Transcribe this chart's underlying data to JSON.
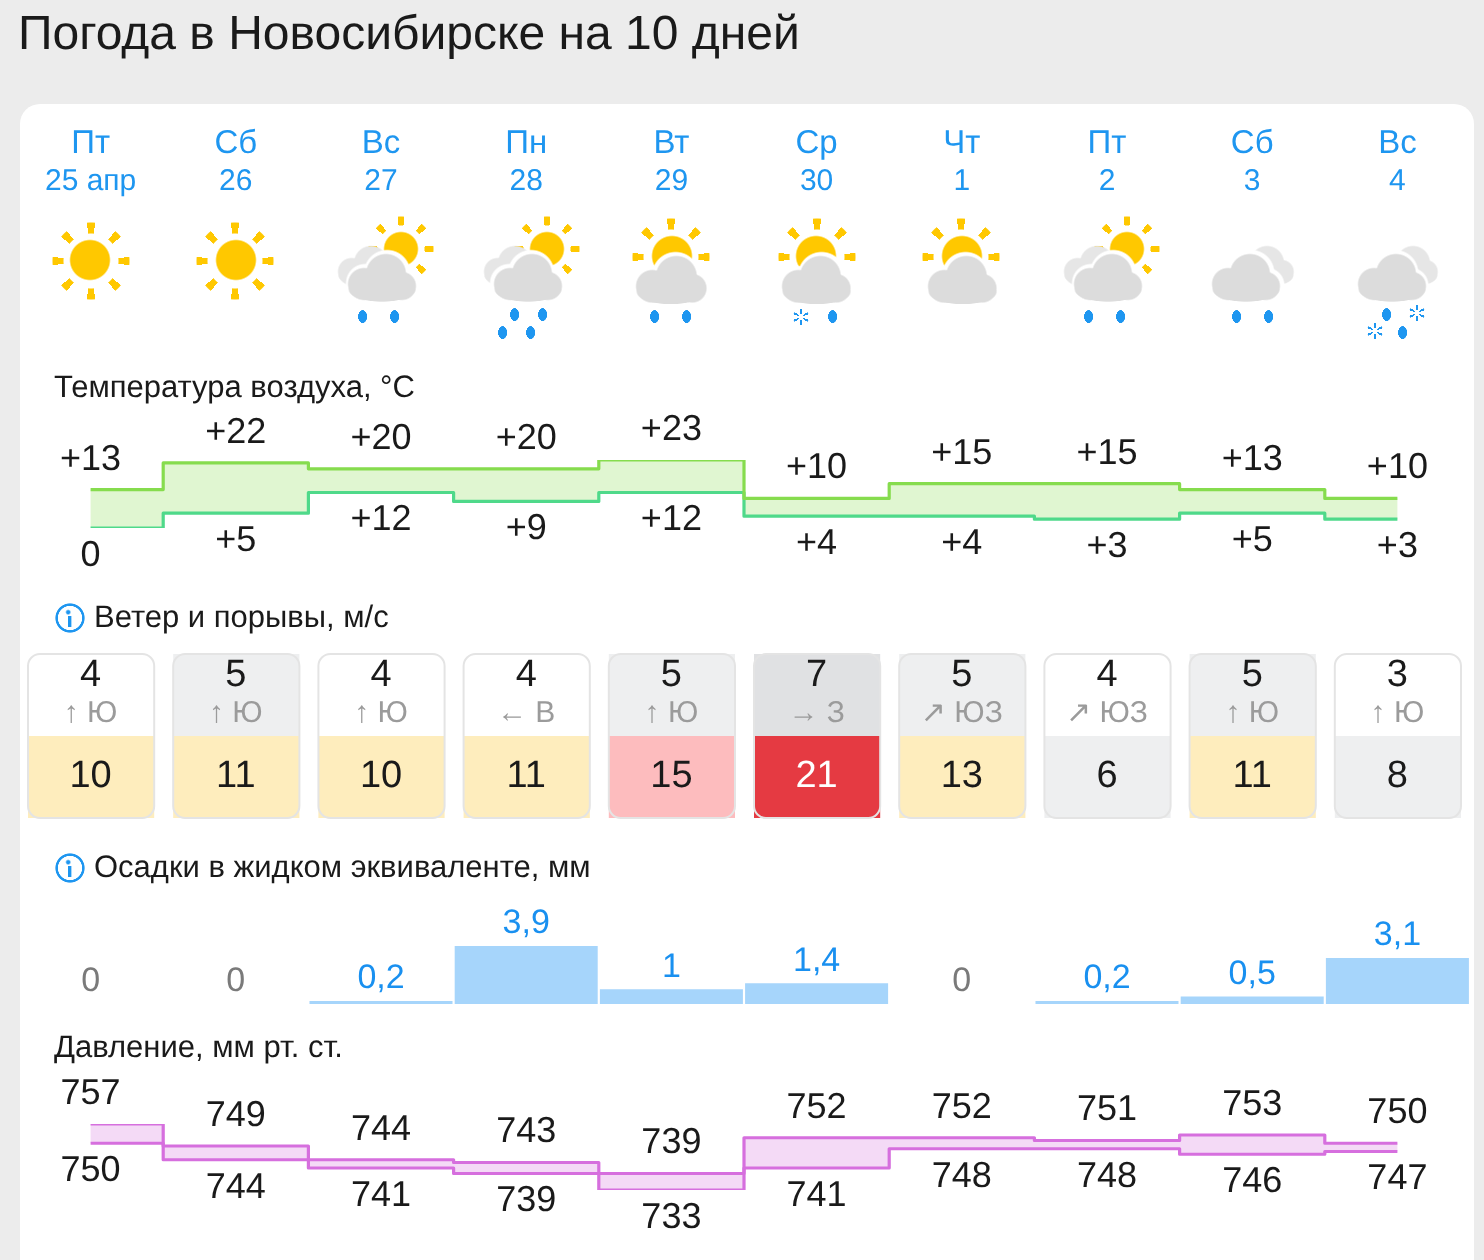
{
  "chart_data": [
    {
      "type": "step",
      "title": "Погода в Новосибирске на 10 дней",
      "subtitle": "Температура воздуха, °C",
      "categories": [
        "Пт\n25 апр",
        "Сб\n26",
        "Вс\n27",
        "Пн\n28",
        "Вт\n29",
        "Ср\n30",
        "Чт\n1",
        "Пт\n2",
        "Сб\n3",
        "Вс\n4"
      ],
      "marker": "none",
      "series": [
        {
          "color": "#86dc4e",
          "values": [
            13,
            22,
            20,
            20,
            23,
            10,
            15,
            15,
            13,
            10
          ],
          "value_labels": [
            "+13",
            "+22",
            "+20",
            "+20",
            "+23",
            "+10",
            "+15",
            "+15",
            "+13",
            "+10"
          ],
          "lower": [
            0,
            5,
            12,
            9,
            12,
            4,
            4,
            3,
            5,
            3
          ],
          "upper": [
            13,
            22,
            20,
            20,
            23,
            10,
            15,
            15,
            13,
            10
          ]
        },
        {
          "color": "#4fd98a",
          "values": [
            0,
            5,
            12,
            9,
            12,
            4,
            4,
            3,
            5,
            3
          ],
          "value_labels": [
            "0",
            "+5",
            "+12",
            "+9",
            "+12",
            "+4",
            "+4",
            "+3",
            "+5",
            "+3"
          ]
        }
      ],
      "tick_labels": "x"
    },
    {
      "type": "heatmap",
      "title": "Ветер и порывы, м/с",
      "categories": [
        null,
        null,
        null,
        null,
        null,
        null,
        null,
        null,
        null,
        null
      ],
      "y_categories": [
        null,
        null
      ],
      "cells": [
        [
          4,
          5,
          4,
          4,
          5,
          7,
          5,
          4,
          5,
          3
        ],
        [
          10,
          11,
          10,
          11,
          15,
          21,
          13,
          6,
          11,
          8
        ]
      ],
      "cell_labels": [
        [
          "4\n↑ Ю",
          "5\n↑ Ю",
          "4\n↑ Ю",
          "4\n← В",
          "5\n↑ Ю",
          "7\n→ З",
          "5\n↗ ЮЗ",
          "4\n↗ ЮЗ",
          "5\n↑ Ю",
          "3\n↑ Ю"
        ],
        [
          "10",
          "11",
          "10",
          "11",
          "15",
          "21",
          "13",
          "6",
          "11",
          "8"
        ]
      ],
      "tick_labels": false
    },
    {
      "type": "bar",
      "title": "Осадки в жидком эквиваленте, мм",
      "categories": [
        null,
        null,
        null,
        null,
        null,
        null,
        null,
        null,
        null,
        null
      ],
      "values": [
        0,
        0,
        0.2,
        3.9,
        1,
        1.4,
        0,
        0.2,
        0.5,
        3.1
      ],
      "value_labels": [
        "0",
        "0",
        "0,2",
        "3,9",
        "1",
        "1,4",
        "0",
        "0,2",
        "0,5",
        "3,1"
      ],
      "color": "#a6d5fb",
      "tick_labels": false
    },
    {
      "type": "step",
      "title": "Давление, мм рт. ст.",
      "categories": [
        null,
        null,
        null,
        null,
        null,
        null,
        null,
        null,
        null,
        null
      ],
      "marker": "none",
      "series": [
        {
          "color": "#d66fde",
          "values": [
            757,
            749,
            744,
            743,
            739,
            752,
            752,
            751,
            753,
            750
          ],
          "value_labels": [
            "757",
            "749",
            "744",
            "743",
            "739",
            "752",
            "752",
            "751",
            "753",
            "750"
          ],
          "lower": [
            750,
            744,
            741,
            739,
            733,
            741,
            748,
            748,
            746,
            747
          ],
          "upper": [
            757,
            749,
            744,
            743,
            739,
            752,
            752,
            751,
            753,
            750
          ]
        },
        {
          "color": "#d66fde",
          "values": [
            750,
            744,
            741,
            739,
            733,
            741,
            748,
            748,
            746,
            747
          ],
          "value_labels": [
            "750",
            "744",
            "741",
            "739",
            "733",
            "741",
            "748",
            "748",
            "746",
            "747"
          ]
        }
      ],
      "tick_labels": false
    }
  ]
}
